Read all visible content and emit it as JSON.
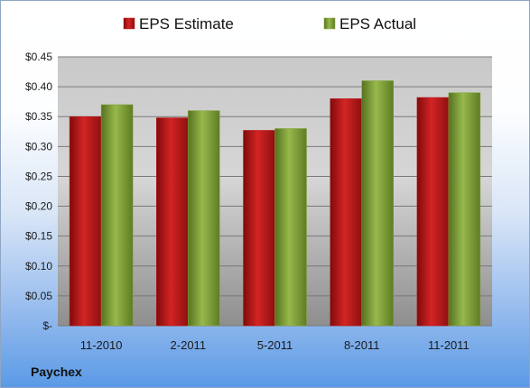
{
  "company": "Paychex",
  "chart_data": {
    "type": "bar",
    "title": "",
    "xlabel": "",
    "ylabel": "",
    "ylim": [
      0,
      0.45
    ],
    "yticks": [
      0,
      0.05,
      0.1,
      0.15,
      0.2,
      0.25,
      0.3,
      0.35,
      0.4,
      0.45
    ],
    "ytick_labels": [
      "$-",
      "$0.05",
      "$0.10",
      "$0.15",
      "$0.20",
      "$0.25",
      "$0.30",
      "$0.35",
      "$0.40",
      "$0.45"
    ],
    "categories": [
      "11-2010",
      "2-2011",
      "5-2011",
      "8-2011",
      "11-2011"
    ],
    "series": [
      {
        "name": "EPS Estimate",
        "color": "#c01818",
        "values": [
          0.35,
          0.348,
          0.327,
          0.38,
          0.382
        ]
      },
      {
        "name": "EPS Actual",
        "color": "#86a63a",
        "values": [
          0.37,
          0.36,
          0.33,
          0.41,
          0.39
        ]
      }
    ],
    "grid": true,
    "legend_position": "top"
  }
}
